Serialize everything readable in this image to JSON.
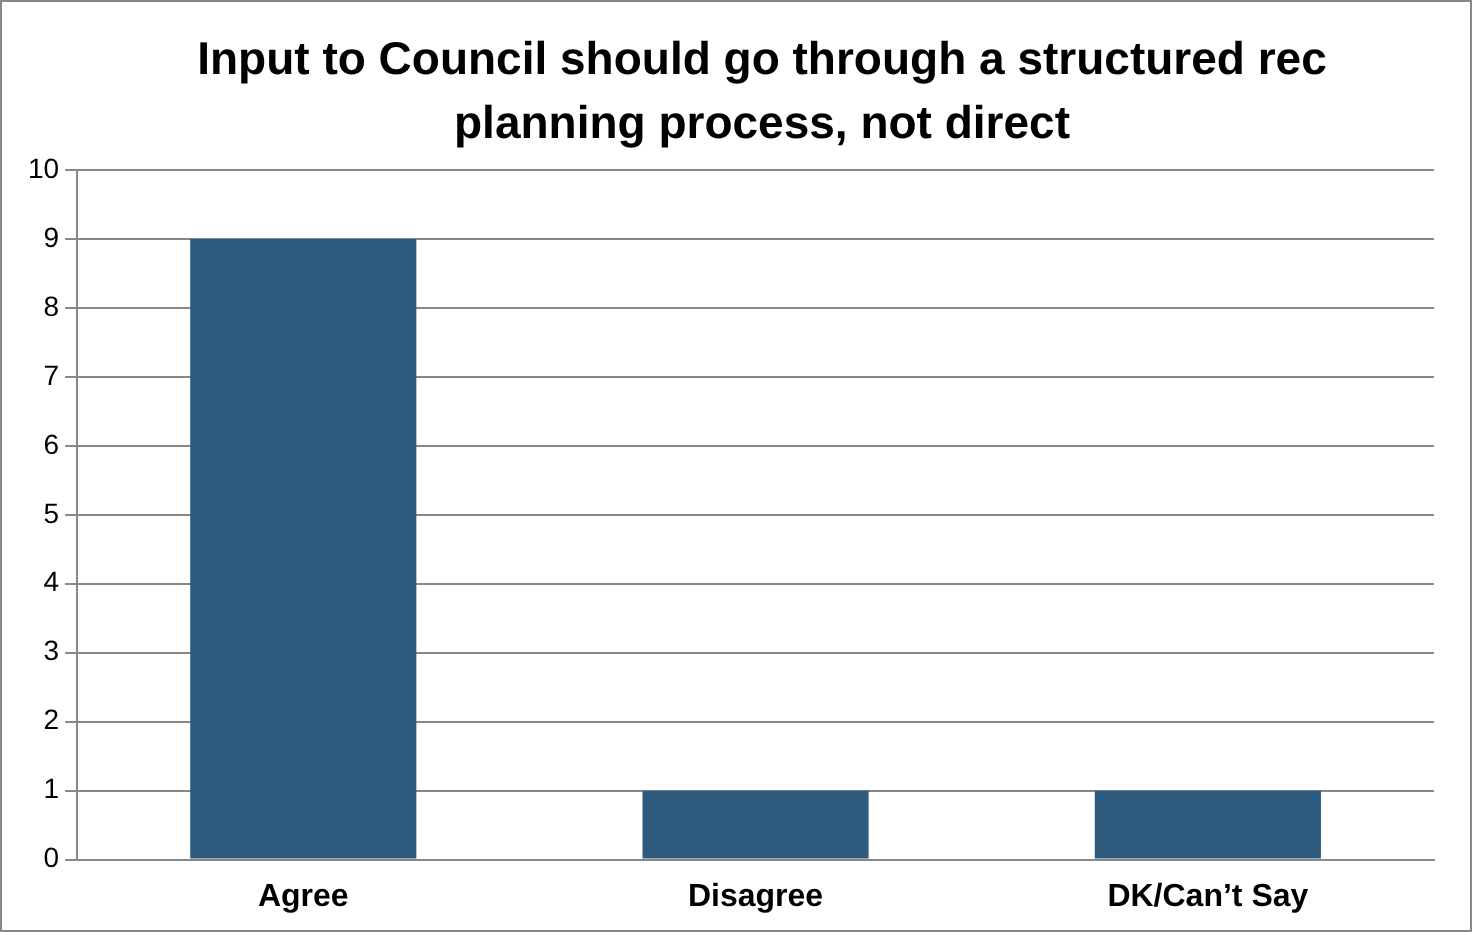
{
  "chart_data": {
    "type": "bar",
    "title": "Input to Council should go through a structured rec planning process, not direct",
    "categories": [
      "Agree",
      "Disagree",
      "DK/Can’t Say"
    ],
    "values": [
      9,
      1,
      1
    ],
    "color": "#2c5b7f",
    "ylim": [
      0,
      10
    ],
    "yticks": [
      0,
      1,
      2,
      3,
      4,
      5,
      6,
      7,
      8,
      9,
      10
    ],
    "grid": "y",
    "legend": false
  }
}
